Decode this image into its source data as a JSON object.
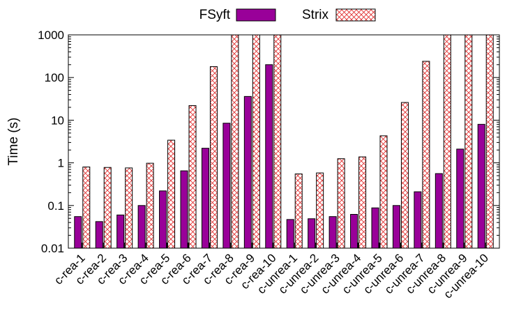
{
  "chart_data": {
    "type": "bar",
    "ylabel": "Time (s)",
    "xlabel": "",
    "title": "",
    "yscale": "log",
    "ylim": [
      0.01,
      1000
    ],
    "yticks": [
      {
        "value": 0.01,
        "label": "0.01"
      },
      {
        "value": 0.1,
        "label": "0.1"
      },
      {
        "value": 1,
        "label": "1"
      },
      {
        "value": 10,
        "label": "10"
      },
      {
        "value": 100,
        "label": "100"
      },
      {
        "value": 1000,
        "label": "1000"
      }
    ],
    "grid": false,
    "legend_position": "top",
    "categories": [
      "c-rea-1",
      "c-rea-2",
      "c-rea-3",
      "c-rea-4",
      "c-rea-5",
      "c-rea-6",
      "c-rea-7",
      "c-rea-8",
      "c-rea-9",
      "c-rea-10",
      "c-unrea-1",
      "c-unrea-2",
      "c-unrea-3",
      "c-unrea-4",
      "c-unrea-5",
      "c-unrea-6",
      "c-unrea-7",
      "c-unrea-8",
      "c-unrea-9",
      "c-unrea-10"
    ],
    "series": [
      {
        "name": "FSyft",
        "color": "#990099",
        "pattern": "solid",
        "values": [
          0.055,
          0.042,
          0.06,
          0.1,
          0.22,
          0.65,
          2.2,
          8.5,
          36,
          200,
          0.047,
          0.049,
          0.055,
          0.062,
          0.088,
          0.1,
          0.21,
          0.56,
          2.1,
          8
        ]
      },
      {
        "name": "Strix",
        "color": "#e03030",
        "pattern": "crosshatch",
        "values": [
          0.8,
          0.78,
          0.76,
          0.98,
          3.4,
          22,
          180,
          1000,
          1000,
          1000,
          0.55,
          0.58,
          1.25,
          1.38,
          4.3,
          26,
          240,
          1000,
          1000,
          1000
        ]
      }
    ]
  }
}
